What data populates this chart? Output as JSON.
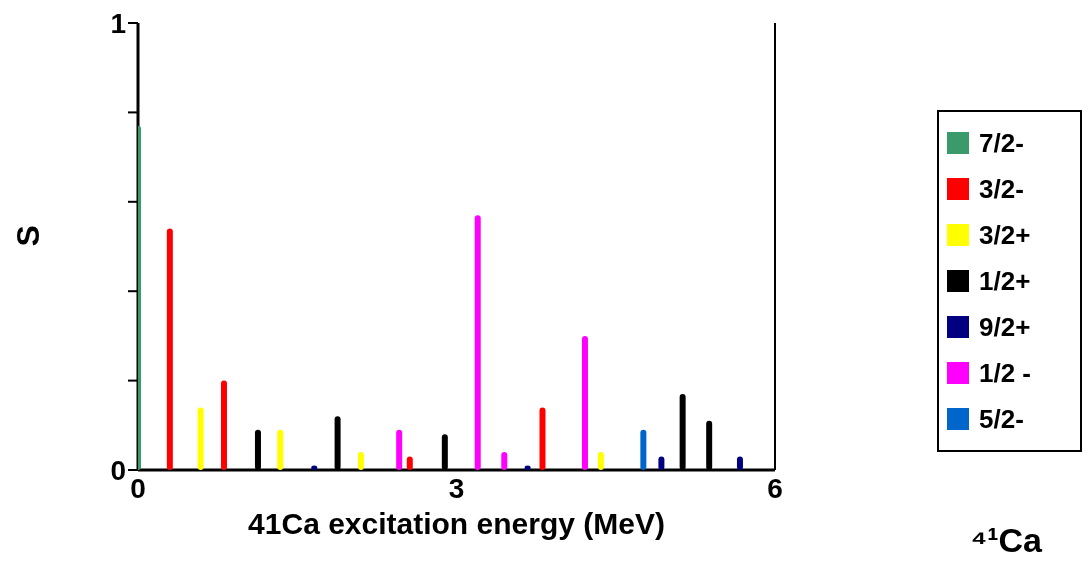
{
  "chart_data": {
    "type": "bar",
    "xlabel": "41Ca excitation energy (MeV)",
    "ylabel": "S",
    "annotations": [
      "⁴¹Ca"
    ],
    "xlim": [
      0,
      6
    ],
    "xticks": [
      0,
      3,
      6
    ],
    "ylim": [
      0,
      1
    ],
    "yticks": [
      0,
      {
        "value": 0.2,
        "label": null
      },
      {
        "value": 0.4,
        "label": null
      },
      {
        "value": 0.6,
        "label": null
      },
      {
        "value": 0.8,
        "label": null
      },
      1
    ],
    "legend": "right",
    "grid": false,
    "series": [
      {
        "name": "7/2-",
        "color": "#3a9a6a",
        "x": [
          0
        ],
        "values": [
          0.77
        ]
      },
      {
        "name": "3/2-",
        "color": "#ff0000",
        "x": [
          0.3,
          0.81,
          2.56,
          3.81
        ],
        "values": [
          0.54,
          0.2,
          0.03,
          0.14
        ]
      },
      {
        "name": "3/2+",
        "color": "#ffff00",
        "x": [
          0.59,
          1.34,
          2.1,
          4.36
        ],
        "values": [
          0.14,
          0.09,
          0.04,
          0.04
        ]
      },
      {
        "name": "1/2+",
        "color": "#000000",
        "x": [
          1.13,
          1.88,
          2.89,
          5.13,
          5.38
        ],
        "values": [
          0.09,
          0.12,
          0.08,
          0.17,
          0.11
        ]
      },
      {
        "name": "9/2+",
        "color": "#000080",
        "x": [
          1.66,
          3.67,
          4.93,
          5.67
        ],
        "values": [
          0.01,
          0.01,
          0.03,
          0.03
        ]
      },
      {
        "name": "1/2 -",
        "color": "#ff00ff",
        "x": [
          2.46,
          3.2,
          3.45,
          4.21
        ],
        "values": [
          0.09,
          0.57,
          0.04,
          0.3
        ]
      },
      {
        "name": "5/2-",
        "color": "#0066cc",
        "x": [
          4.76
        ],
        "values": [
          0.09
        ]
      }
    ]
  }
}
